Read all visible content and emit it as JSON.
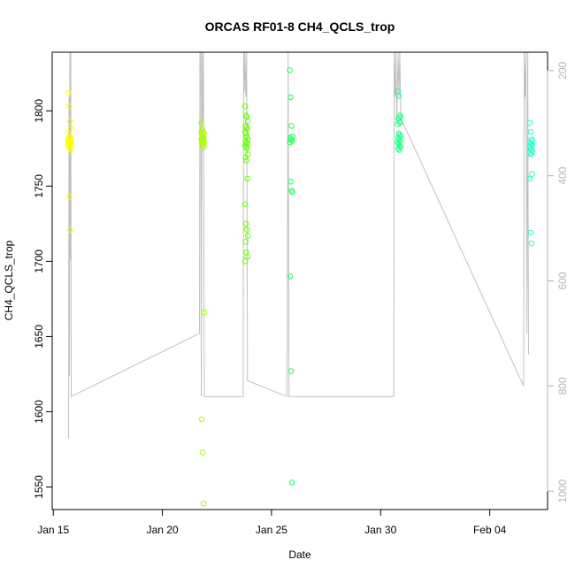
{
  "chart_data": {
    "type": "scatter",
    "title": "ORCAS RF01-8 CH4_QCLS_trop",
    "xlabel": "Date",
    "ylabel": "CH4_QCLS_trop",
    "x_ticks": [
      "Jan 15",
      "Jan 20",
      "Jan 25",
      "Jan 30",
      "Feb 04"
    ],
    "x_tick_days": [
      0,
      5,
      10,
      15,
      20
    ],
    "xlim_days": [
      -0.05,
      22.65
    ],
    "y_ticks": [
      1550,
      1600,
      1650,
      1700,
      1750,
      1800
    ],
    "ylim": [
      1535,
      1839
    ],
    "y2_ticks": [
      200,
      400,
      600,
      800,
      1000
    ],
    "y2lim": [
      1035,
      165
    ],
    "grid": false,
    "flights": [
      {
        "day": 0.75,
        "color": "#ffff00",
        "values": [
          1812,
          1803,
          1793,
          1788,
          1785,
          1783,
          1782,
          1781,
          1780,
          1780,
          1779,
          1779,
          1778,
          1778,
          1777,
          1776,
          1775,
          1774,
          1780,
          1781,
          1782,
          1779,
          1743,
          1721
        ]
      },
      {
        "day": 6.85,
        "color": "#aaff00",
        "values": [
          1792,
          1788,
          1786,
          1785,
          1784,
          1783,
          1782,
          1781,
          1780,
          1780,
          1779,
          1778,
          1777,
          1776,
          1786,
          1782,
          1781,
          1666,
          1595,
          1573,
          1539
        ]
      },
      {
        "day": 8.85,
        "color": "#66ff00",
        "values": [
          1803,
          1797,
          1796,
          1793,
          1790,
          1789,
          1788,
          1786,
          1785,
          1783,
          1781,
          1780,
          1779,
          1778,
          1777,
          1776,
          1775,
          1771,
          1769,
          1767,
          1755,
          1738,
          1725,
          1721,
          1717,
          1713,
          1706,
          1703,
          1700
        ]
      },
      {
        "day": 10.9,
        "color": "#22ff55",
        "values": [
          1827,
          1809,
          1790,
          1783,
          1782,
          1781,
          1780,
          1779,
          1753,
          1747,
          1746,
          1690,
          1627,
          1553
        ]
      },
      {
        "day": 15.85,
        "color": "#22ff88",
        "values": [
          1813,
          1810,
          1797,
          1796,
          1795,
          1793,
          1792,
          1791,
          1785,
          1784,
          1783,
          1782,
          1781,
          1780,
          1779,
          1778,
          1777,
          1776,
          1775,
          1774
        ]
      },
      {
        "day": 21.9,
        "color": "#22ffcc",
        "values": [
          1792,
          1786,
          1781,
          1780,
          1779,
          1778,
          1777,
          1776,
          1775,
          1774,
          1773,
          1772,
          1771,
          1758,
          1755,
          1719,
          1712
        ]
      }
    ],
    "pressure_trace": [
      [
        0.7,
        900
      ],
      [
        0.72,
        250
      ],
      [
        0.74,
        780
      ],
      [
        0.76,
        165
      ],
      [
        0.78,
        560
      ],
      [
        0.8,
        165
      ],
      [
        0.82,
        820
      ],
      [
        6.7,
        700
      ],
      [
        6.72,
        165
      ],
      [
        6.74,
        250
      ],
      [
        6.76,
        165
      ],
      [
        6.78,
        820
      ],
      [
        6.82,
        165
      ],
      [
        6.84,
        300
      ],
      [
        6.88,
        165
      ],
      [
        6.92,
        820
      ],
      [
        8.7,
        820
      ],
      [
        8.72,
        165
      ],
      [
        8.75,
        240
      ],
      [
        8.78,
        165
      ],
      [
        8.82,
        250
      ],
      [
        8.86,
        165
      ],
      [
        8.9,
        790
      ],
      [
        10.7,
        820
      ],
      [
        10.72,
        720
      ],
      [
        10.76,
        165
      ],
      [
        10.8,
        820
      ],
      [
        15.6,
        820
      ],
      [
        15.62,
        165
      ],
      [
        15.66,
        250
      ],
      [
        15.7,
        165
      ],
      [
        15.74,
        300
      ],
      [
        15.8,
        165
      ],
      [
        15.84,
        250
      ],
      [
        15.88,
        165
      ],
      [
        15.92,
        290
      ],
      [
        21.55,
        800
      ],
      [
        21.58,
        165
      ],
      [
        21.62,
        250
      ],
      [
        21.66,
        165
      ],
      [
        21.7,
        700
      ],
      [
        21.74,
        165
      ],
      [
        21.78,
        740
      ]
    ]
  }
}
